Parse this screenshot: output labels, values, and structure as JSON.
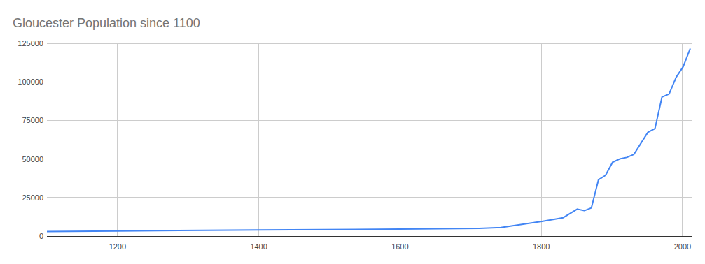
{
  "chart_data": {
    "type": "line",
    "title": "Gloucester Population since 1100",
    "x": [
      1100,
      1200,
      1400,
      1600,
      1712,
      1743,
      1801,
      1831,
      1851,
      1861,
      1871,
      1881,
      1891,
      1901,
      1911,
      1921,
      1931,
      1951,
      1961,
      1971,
      1981,
      1991,
      2001,
      2011
    ],
    "values": [
      3000,
      3300,
      4000,
      4500,
      5000,
      5600,
      9500,
      11900,
      17500,
      16500,
      18300,
      36500,
      39400,
      47900,
      50000,
      51000,
      52900,
      67300,
      69700,
      90200,
      92100,
      103000,
      109900,
      121700
    ],
    "color": "#4285f4",
    "xlim": [
      1100,
      2013
    ],
    "xticks": [
      1200,
      1400,
      1600,
      1800,
      2000
    ],
    "ylim": [
      0,
      125000
    ],
    "yticks": [
      0,
      25000,
      50000,
      75000,
      100000,
      125000
    ],
    "grid": true
  }
}
